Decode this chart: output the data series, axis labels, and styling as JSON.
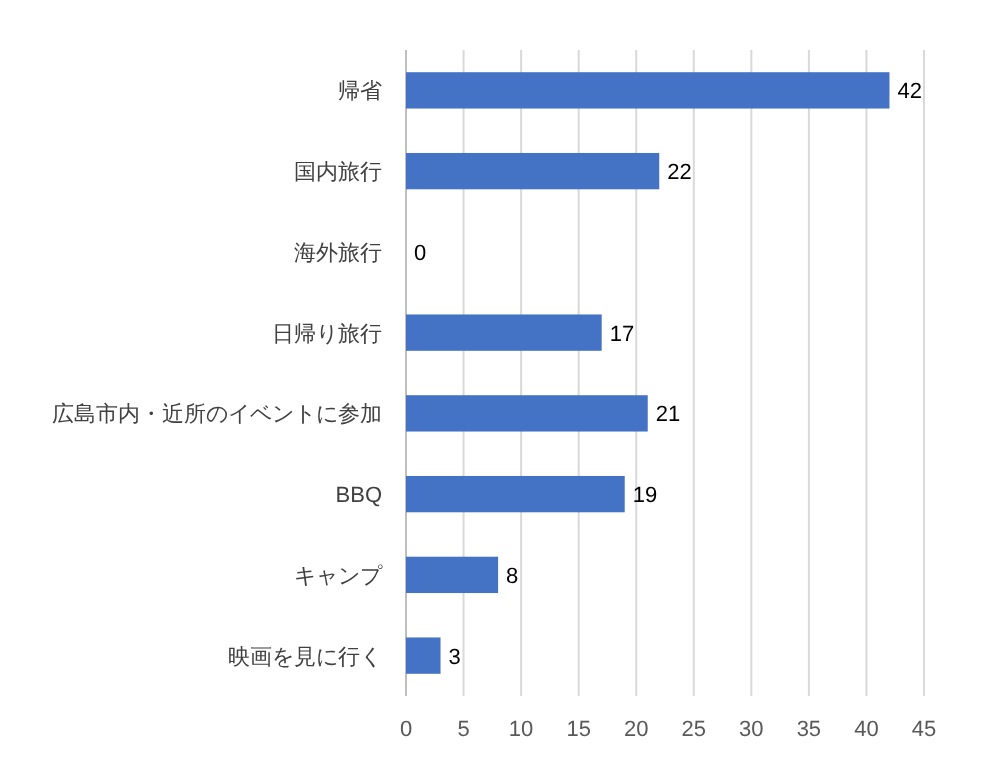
{
  "chart_data": {
    "type": "bar",
    "orientation": "horizontal",
    "categories": [
      "帰省",
      "国内旅行",
      "海外旅行",
      "日帰り旅行",
      "広島市内・近所のイベントに参加",
      "BBQ",
      "キャンプ",
      "映画を見に行く"
    ],
    "values": [
      42,
      22,
      0,
      17,
      21,
      19,
      8,
      3
    ],
    "color": "#4472c4",
    "xlim": [
      0,
      45
    ],
    "xticks": [
      0,
      5,
      10,
      15,
      20,
      25,
      30,
      35,
      40,
      45
    ],
    "grid": "x",
    "data_labels": true
  }
}
